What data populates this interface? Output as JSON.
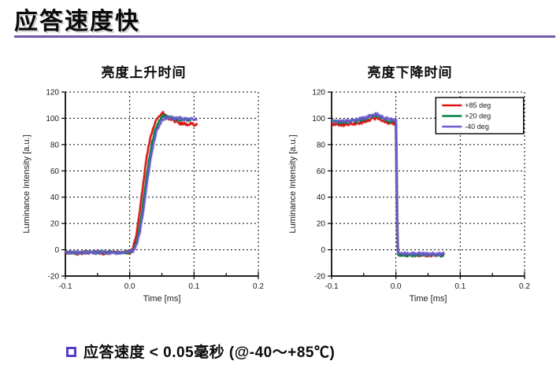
{
  "slide": {
    "title": "应答速度快",
    "accent_color": "#7158a8",
    "bullet": {
      "text": "应答速度 < 0.05毫秒 (@-40～+85℃)",
      "marker_color": "#5140c8"
    }
  },
  "chart_data": [
    {
      "type": "line",
      "title": "亮度上升时间",
      "xlabel": "Time [ms]",
      "ylabel": "Luminance Intensity [a.u.]",
      "xlim": [
        -0.1,
        0.2
      ],
      "ylim": [
        -20,
        120
      ],
      "xticks": [
        -0.1,
        0.0,
        0.1,
        0.2
      ],
      "yticks": [
        -20,
        0,
        20,
        40,
        60,
        80,
        100,
        120
      ],
      "grid": true,
      "legend": false,
      "series": [
        {
          "name": "+85 deg",
          "color": "#dd1414",
          "points": [
            [
              -0.1,
              -2
            ],
            [
              -0.09,
              -2
            ],
            [
              -0.08,
              -3
            ],
            [
              -0.07,
              -2
            ],
            [
              -0.06,
              -2
            ],
            [
              -0.05,
              -2
            ],
            [
              -0.04,
              -3
            ],
            [
              -0.03,
              -2
            ],
            [
              -0.02,
              -2
            ],
            [
              -0.01,
              -2
            ],
            [
              0.0,
              -2
            ],
            [
              0.004,
              0
            ],
            [
              0.008,
              6
            ],
            [
              0.012,
              16
            ],
            [
              0.016,
              30
            ],
            [
              0.02,
              46
            ],
            [
              0.024,
              62
            ],
            [
              0.028,
              75
            ],
            [
              0.032,
              85
            ],
            [
              0.036,
              92
            ],
            [
              0.04,
              97
            ],
            [
              0.044,
              101
            ],
            [
              0.048,
              103
            ],
            [
              0.052,
              104
            ],
            [
              0.056,
              102
            ],
            [
              0.06,
              100
            ],
            [
              0.065,
              99
            ],
            [
              0.07,
              98
            ],
            [
              0.075,
              97
            ],
            [
              0.08,
              96
            ],
            [
              0.085,
              96
            ],
            [
              0.09,
              95
            ],
            [
              0.095,
              96
            ],
            [
              0.1,
              95
            ],
            [
              0.105,
              95
            ]
          ]
        },
        {
          "name": "+20 deg",
          "color": "#008040",
          "points": [
            [
              -0.1,
              -2
            ],
            [
              -0.05,
              -2
            ],
            [
              0.0,
              -2
            ],
            [
              0.006,
              0
            ],
            [
              0.01,
              5
            ],
            [
              0.014,
              13
            ],
            [
              0.018,
              25
            ],
            [
              0.022,
              40
            ],
            [
              0.026,
              55
            ],
            [
              0.03,
              68
            ],
            [
              0.034,
              79
            ],
            [
              0.038,
              88
            ],
            [
              0.042,
              94
            ],
            [
              0.046,
              98
            ],
            [
              0.05,
              101
            ],
            [
              0.054,
              102
            ],
            [
              0.058,
              102
            ],
            [
              0.062,
              101
            ],
            [
              0.07,
              100
            ],
            [
              0.08,
              99
            ],
            [
              0.09,
              99
            ],
            [
              0.095,
              98
            ]
          ]
        },
        {
          "name": "-40 deg",
          "color": "#6a5acd",
          "points": [
            [
              -0.1,
              -2
            ],
            [
              -0.05,
              -2
            ],
            [
              0.0,
              -2
            ],
            [
              0.007,
              0
            ],
            [
              0.012,
              6
            ],
            [
              0.016,
              14
            ],
            [
              0.02,
              26
            ],
            [
              0.024,
              40
            ],
            [
              0.028,
              54
            ],
            [
              0.032,
              67
            ],
            [
              0.036,
              78
            ],
            [
              0.04,
              87
            ],
            [
              0.044,
              93
            ],
            [
              0.048,
              97
            ],
            [
              0.052,
              99
            ],
            [
              0.056,
              100
            ],
            [
              0.06,
              101
            ],
            [
              0.07,
              100
            ],
            [
              0.08,
              100
            ],
            [
              0.09,
              99
            ],
            [
              0.1,
              100
            ],
            [
              0.105,
              99
            ]
          ]
        }
      ]
    },
    {
      "type": "line",
      "title": "亮度下降时间",
      "xlabel": "Time [ms]",
      "ylabel": "Luminance Intensity [a.u.]",
      "xlim": [
        -0.1,
        0.2
      ],
      "ylim": [
        -20,
        120
      ],
      "xticks": [
        -0.1,
        0.0,
        0.1,
        0.2
      ],
      "yticks": [
        -20,
        0,
        20,
        40,
        60,
        80,
        100,
        120
      ],
      "grid": true,
      "legend": true,
      "legend_position": "top-right",
      "series": [
        {
          "name": "+85 deg",
          "color": "#dd1414",
          "points": [
            [
              -0.1,
              96
            ],
            [
              -0.09,
              95
            ],
            [
              -0.08,
              95
            ],
            [
              -0.07,
              96
            ],
            [
              -0.06,
              96
            ],
            [
              -0.05,
              97
            ],
            [
              -0.045,
              98
            ],
            [
              -0.04,
              99
            ],
            [
              -0.035,
              100
            ],
            [
              -0.03,
              100
            ],
            [
              -0.025,
              99
            ],
            [
              -0.02,
              98
            ],
            [
              -0.015,
              97
            ],
            [
              -0.01,
              96
            ],
            [
              -0.005,
              96
            ],
            [
              0.0,
              96
            ],
            [
              0.001,
              60
            ],
            [
              0.002,
              20
            ],
            [
              0.003,
              0
            ],
            [
              0.004,
              -3
            ],
            [
              0.01,
              -4
            ],
            [
              0.02,
              -4
            ],
            [
              0.03,
              -4
            ],
            [
              0.04,
              -4
            ],
            [
              0.05,
              -4
            ],
            [
              0.06,
              -4
            ],
            [
              0.07,
              -4
            ],
            [
              0.075,
              -4
            ]
          ]
        },
        {
          "name": "+20 deg",
          "color": "#008040",
          "points": [
            [
              -0.1,
              98
            ],
            [
              -0.09,
              97
            ],
            [
              -0.08,
              97
            ],
            [
              -0.07,
              98
            ],
            [
              -0.06,
              98
            ],
            [
              -0.05,
              99
            ],
            [
              -0.045,
              100
            ],
            [
              -0.04,
              101
            ],
            [
              -0.035,
              102
            ],
            [
              -0.03,
              102
            ],
            [
              -0.025,
              101
            ],
            [
              -0.02,
              100
            ],
            [
              -0.015,
              99
            ],
            [
              -0.01,
              98
            ],
            [
              -0.005,
              98
            ],
            [
              0.0,
              98
            ],
            [
              0.001,
              60
            ],
            [
              0.002,
              20
            ],
            [
              0.003,
              -1
            ],
            [
              0.004,
              -4
            ],
            [
              0.01,
              -4
            ],
            [
              0.02,
              -4
            ],
            [
              0.03,
              -4
            ],
            [
              0.04,
              -4
            ],
            [
              0.05,
              -4
            ],
            [
              0.06,
              -4
            ],
            [
              0.07,
              -4
            ],
            [
              0.075,
              -4
            ]
          ]
        },
        {
          "name": "-40 deg",
          "color": "#6a5acd",
          "points": [
            [
              -0.1,
              98
            ],
            [
              -0.09,
              98
            ],
            [
              -0.08,
              98
            ],
            [
              -0.07,
              98
            ],
            [
              -0.06,
              99
            ],
            [
              -0.05,
              100
            ],
            [
              -0.045,
              101
            ],
            [
              -0.04,
              102
            ],
            [
              -0.035,
              103
            ],
            [
              -0.03,
              103
            ],
            [
              -0.025,
              102
            ],
            [
              -0.02,
              101
            ],
            [
              -0.015,
              100
            ],
            [
              -0.01,
              99
            ],
            [
              -0.005,
              99
            ],
            [
              0.0,
              99
            ],
            [
              0.001,
              60
            ],
            [
              0.002,
              20
            ],
            [
              0.003,
              0
            ],
            [
              0.004,
              -3
            ],
            [
              0.01,
              -3
            ],
            [
              0.02,
              -3
            ],
            [
              0.03,
              -3
            ],
            [
              0.04,
              -3
            ],
            [
              0.05,
              -3
            ],
            [
              0.06,
              -3
            ],
            [
              0.07,
              -3
            ],
            [
              0.075,
              -3
            ]
          ]
        }
      ]
    }
  ]
}
